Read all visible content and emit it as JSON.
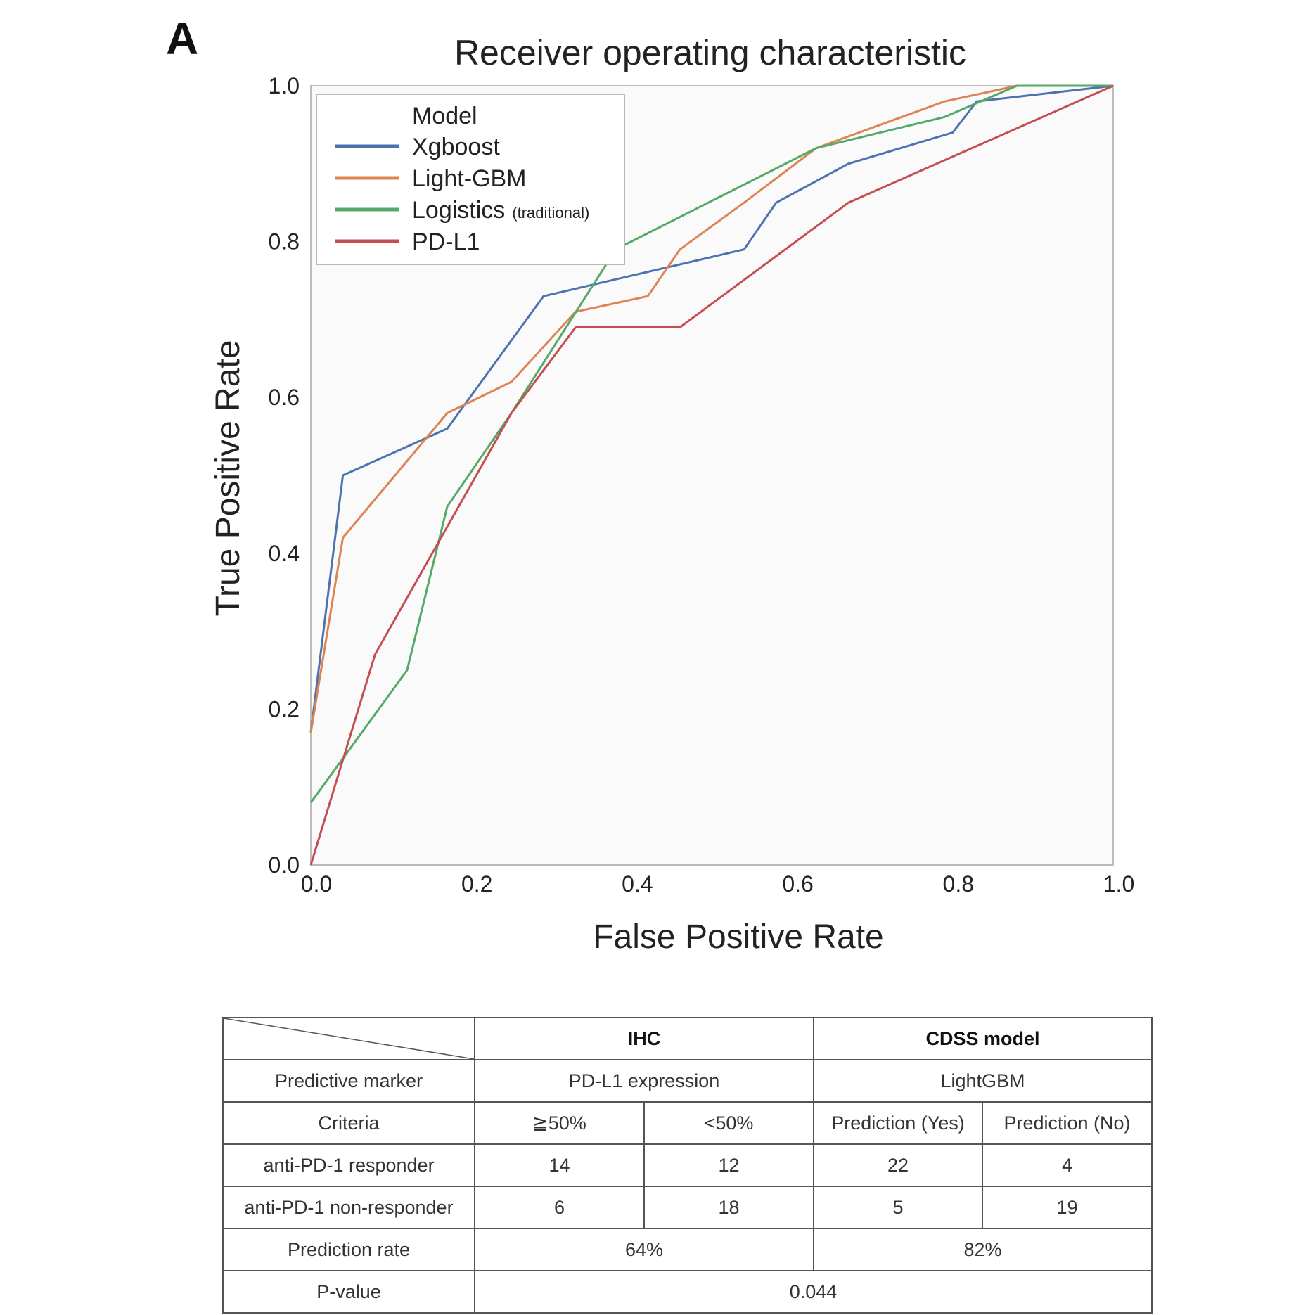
{
  "panel_label": "A",
  "chart_data": {
    "type": "line",
    "title": "Receiver operating characteristic",
    "xlabel": "False Positive Rate",
    "ylabel": "True Positive Rate",
    "xlim": [
      0.0,
      1.0
    ],
    "ylim": [
      0.0,
      1.0
    ],
    "x_ticks": [
      "0.0",
      "0.2",
      "0.4",
      "0.6",
      "0.8",
      "1.0"
    ],
    "y_ticks": [
      "0.0",
      "0.2",
      "0.4",
      "0.6",
      "0.8",
      "1.0"
    ],
    "grid": false,
    "legend_title": "Model",
    "legend_position": "top-left",
    "series": [
      {
        "name": "Xgboost",
        "color": "#4c72b0",
        "points": [
          [
            0.0,
            0.17
          ],
          [
            0.04,
            0.5
          ],
          [
            0.17,
            0.56
          ],
          [
            0.29,
            0.73
          ],
          [
            0.54,
            0.79
          ],
          [
            0.58,
            0.85
          ],
          [
            0.67,
            0.9
          ],
          [
            0.8,
            0.94
          ],
          [
            0.83,
            0.98
          ],
          [
            1.0,
            1.0
          ]
        ]
      },
      {
        "name": "Light-GBM",
        "color": "#dd8452",
        "points": [
          [
            0.0,
            0.17
          ],
          [
            0.04,
            0.42
          ],
          [
            0.17,
            0.58
          ],
          [
            0.25,
            0.62
          ],
          [
            0.33,
            0.71
          ],
          [
            0.42,
            0.73
          ],
          [
            0.46,
            0.79
          ],
          [
            0.54,
            0.85
          ],
          [
            0.63,
            0.92
          ],
          [
            0.79,
            0.98
          ],
          [
            0.88,
            1.0
          ],
          [
            1.0,
            1.0
          ]
        ]
      },
      {
        "name": "Logistics",
        "note": "(traditional)",
        "color": "#55a868",
        "points": [
          [
            0.0,
            0.08
          ],
          [
            0.12,
            0.25
          ],
          [
            0.17,
            0.46
          ],
          [
            0.25,
            0.58
          ],
          [
            0.38,
            0.79
          ],
          [
            0.63,
            0.92
          ],
          [
            0.79,
            0.96
          ],
          [
            0.88,
            1.0
          ],
          [
            1.0,
            1.0
          ]
        ]
      },
      {
        "name": "PD-L1",
        "color": "#c44e52",
        "points": [
          [
            0.0,
            0.0
          ],
          [
            0.08,
            0.27
          ],
          [
            0.25,
            0.58
          ],
          [
            0.33,
            0.69
          ],
          [
            0.46,
            0.69
          ],
          [
            0.67,
            0.85
          ],
          [
            1.0,
            1.0
          ]
        ]
      }
    ]
  },
  "table": {
    "header": {
      "ihc": "IHC",
      "cdss": "CDSS model"
    },
    "marker_row": {
      "label": "Predictive marker",
      "ihc": "PD-L1 expression",
      "cdss": "LightGBM"
    },
    "criteria_row": {
      "label": "Criteria",
      "c1": "≧50%",
      "c2": "<50%",
      "c3": "Prediction (Yes)",
      "c4": "Prediction (No)"
    },
    "responder_row": {
      "label": "anti-PD-1 responder",
      "c1": "14",
      "c2": "12",
      "c3": "22",
      "c4": "4"
    },
    "nonresponder_row": {
      "label": "anti-PD-1 non-responder",
      "c1": "6",
      "c2": "18",
      "c3": "5",
      "c4": "19"
    },
    "rate_row": {
      "label": "Prediction rate",
      "ihc": "64%",
      "cdss": "82%"
    },
    "pvalue_row": {
      "label": "P-value",
      "value": "0.044"
    }
  }
}
